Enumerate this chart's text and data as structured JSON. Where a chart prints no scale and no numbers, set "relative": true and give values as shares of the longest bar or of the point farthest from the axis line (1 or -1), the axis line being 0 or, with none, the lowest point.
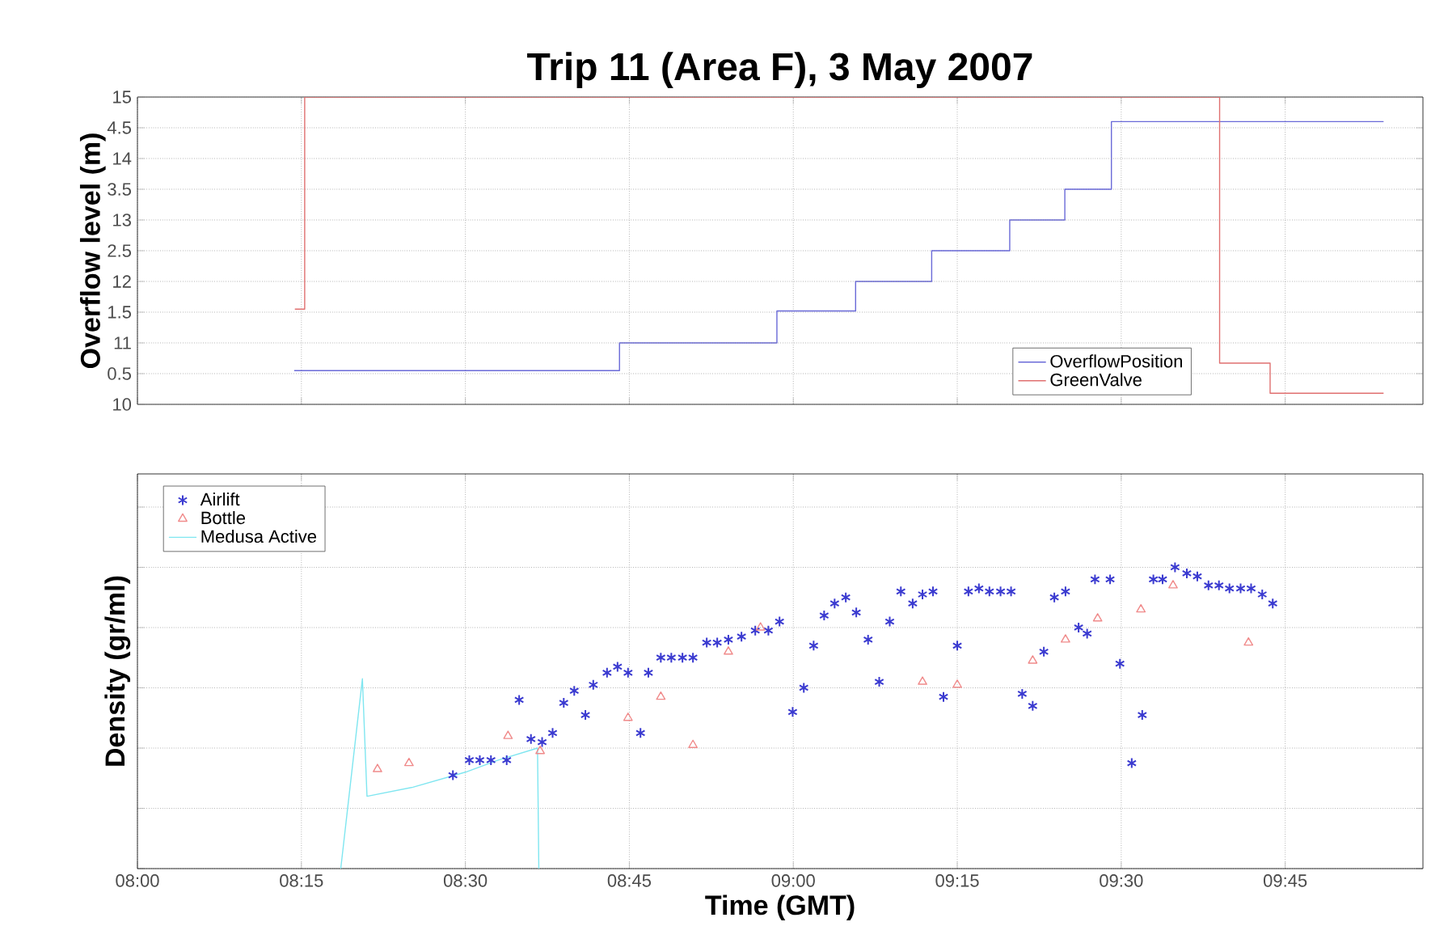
{
  "chart_data": [
    {
      "type": "step",
      "title": "Trip 11 (Area F), 3 May 2007",
      "ylabel": "Overflow level (m)",
      "xlim": [
        8,
        9.96
      ],
      "xticks": [
        {
          "value": 8,
          "label": null
        },
        {
          "value": 8.25,
          "label": null
        },
        {
          "value": 8.5,
          "label": null
        },
        {
          "value": 8.75,
          "label": null
        },
        {
          "value": 9,
          "label": null
        },
        {
          "value": 9.25,
          "label": null
        },
        {
          "value": 9.5,
          "label": null
        },
        {
          "value": 9.75,
          "label": null
        }
      ],
      "ylim": [
        0,
        5
      ],
      "yticks": [
        0.5,
        1.5,
        2.5,
        3.5,
        4.5
      ],
      "y2lim": [
        10,
        15
      ],
      "y2ticks": [
        10,
        11,
        12,
        13,
        14,
        15
      ],
      "tick_labels": "y",
      "grid": true,
      "legend": "bottom right",
      "series": [
        {
          "name": "OverflowPosition",
          "color": "#6a6ad8",
          "x": [
            8.239,
            8.735,
            8.975,
            9.095,
            9.211,
            9.33,
            9.414,
            9.485,
            9.9
          ],
          "values": [
            0.55,
            1.0,
            1.52,
            2.0,
            2.5,
            3.0,
            3.5,
            4.6,
            4.6
          ]
        },
        {
          "name": "GreenValve",
          "color": "#e07070",
          "axis": "y2",
          "x": [
            8.24,
            8.255,
            9.65,
            9.727,
            9.9
          ],
          "values": [
            11.55,
            15,
            10.67,
            10.18,
            10.18
          ]
        }
      ]
    },
    {
      "type": "scatter",
      "relative": true,
      "xlabel": "Time (GMT)",
      "ylabel": "Density (gr/ml)",
      "xlim": [
        8,
        9.96
      ],
      "xticks": [
        {
          "value": 8,
          "label": "08:00"
        },
        {
          "value": 8.25,
          "label": "08:15"
        },
        {
          "value": 8.5,
          "label": "08:30"
        },
        {
          "value": 8.75,
          "label": "08:45"
        },
        {
          "value": 9,
          "label": "09:00"
        },
        {
          "value": 9.25,
          "label": "09:15"
        },
        {
          "value": 9.5,
          "label": "09:30"
        },
        {
          "value": 9.75,
          "label": "09:45"
        }
      ],
      "tick_labels": "x",
      "grid": true,
      "legend": "top left",
      "series": [
        {
          "name": "Airlift",
          "color": "#3a3ad0",
          "marker": "cross",
          "x": [
            8.481,
            8.506,
            8.522,
            8.539,
            8.563,
            8.582,
            8.6,
            8.617,
            8.633,
            8.65,
            8.666,
            8.683,
            8.695,
            8.716,
            8.732,
            8.748,
            8.767,
            8.779,
            8.798,
            8.814,
            8.831,
            8.847,
            8.868,
            8.884,
            8.901,
            8.921,
            8.942,
            8.962,
            8.979,
            8.999,
            9.016,
            9.031,
            9.047,
            9.063,
            9.08,
            9.096,
            9.114,
            9.131,
            9.147,
            9.164,
            9.182,
            9.197,
            9.213,
            9.229,
            9.25,
            9.267,
            9.283,
            9.299,
            9.316,
            9.332,
            9.349,
            9.365,
            9.382,
            9.398,
            9.415,
            9.435,
            9.448,
            9.46,
            9.483,
            9.498,
            9.516,
            9.532,
            9.549,
            9.563,
            9.582,
            9.6,
            9.616,
            9.633,
            9.649,
            9.665,
            9.682,
            9.698,
            9.715,
            9.731
          ],
          "values": [
            0.31,
            0.36,
            0.36,
            0.36,
            0.36,
            0.56,
            0.43,
            0.42,
            0.45,
            0.55,
            0.59,
            0.51,
            0.61,
            0.65,
            0.67,
            0.65,
            0.45,
            0.65,
            0.7,
            0.7,
            0.7,
            0.7,
            0.75,
            0.75,
            0.76,
            0.77,
            0.79,
            0.79,
            0.82,
            0.52,
            0.6,
            0.74,
            0.84,
            0.88,
            0.9,
            0.85,
            0.76,
            0.62,
            0.82,
            0.92,
            0.88,
            0.91,
            0.92,
            0.57,
            0.74,
            0.92,
            0.93,
            0.92,
            0.92,
            0.92,
            0.58,
            0.54,
            0.72,
            0.9,
            0.92,
            0.8,
            0.78,
            0.96,
            0.96,
            0.68,
            0.35,
            0.51,
            0.96,
            0.96,
            1.0,
            0.98,
            0.97,
            0.94,
            0.94,
            0.93,
            0.93,
            0.93,
            0.91,
            0.88
          ]
        },
        {
          "name": "Bottle",
          "color": "#f08a8a",
          "marker": "triangle",
          "x": [
            8.366,
            8.414,
            8.565,
            8.614,
            8.748,
            8.798,
            8.847,
            8.901,
            8.95,
            9.197,
            9.25,
            9.365,
            9.415,
            9.464,
            9.53,
            9.579,
            9.694
          ],
          "values": [
            0.33,
            0.35,
            0.44,
            0.39,
            0.5,
            0.57,
            0.41,
            0.72,
            0.8,
            0.62,
            0.61,
            0.69,
            0.76,
            0.83,
            0.86,
            0.94,
            0.75
          ]
        },
        {
          "name": "Medusa Active",
          "type": "line",
          "color": "#7fe6f0",
          "marker": "none",
          "x": [
            8.31,
            8.343,
            8.35,
            8.42,
            8.5,
            8.55,
            8.61,
            8.612
          ],
          "values": [
            0,
            0.63,
            0.24,
            0.27,
            0.32,
            0.36,
            0.4,
            0
          ]
        }
      ]
    }
  ]
}
